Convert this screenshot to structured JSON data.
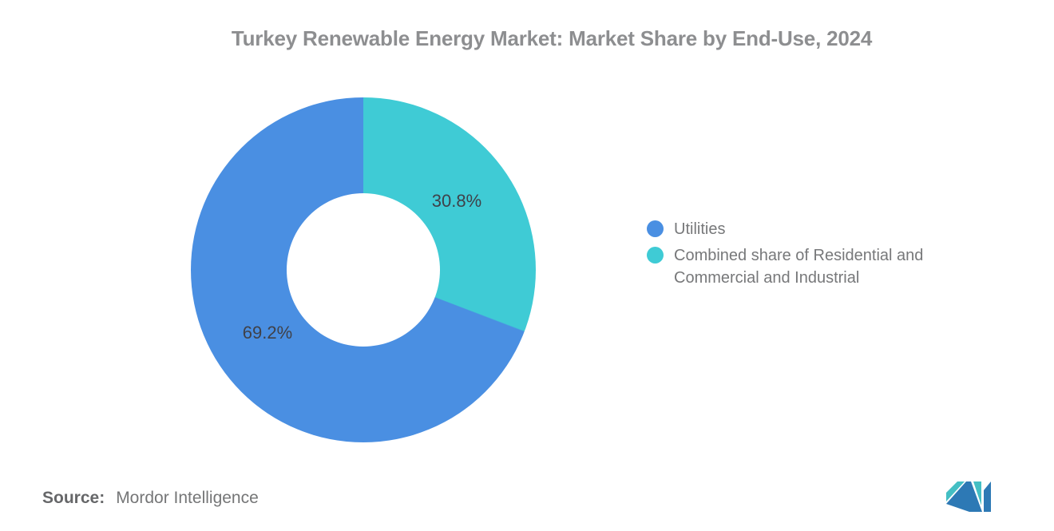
{
  "chart_data": {
    "type": "pie",
    "title": "Turkey Renewable Energy Market: Market Share by End-Use, 2024",
    "categories": [
      "Utilities",
      "Combined share of Residential and Commercial and Industrial"
    ],
    "values": [
      69.2,
      30.8
    ],
    "display_labels": [
      "69.2%",
      "30.8%"
    ],
    "colors": [
      "#4A8FE2",
      "#3FCBD5"
    ],
    "donut": true,
    "inner_radius_ratio": 0.444,
    "start_angle_deg": 0,
    "direction": "clockwise",
    "legend_position": "right",
    "background": "#FFFFFF"
  },
  "source": {
    "label": "Source:",
    "value": "Mordor Intelligence"
  },
  "logo": {
    "name": "mordor-intelligence-logo",
    "teal": "#44BFC4",
    "blue": "#2D79B5"
  }
}
